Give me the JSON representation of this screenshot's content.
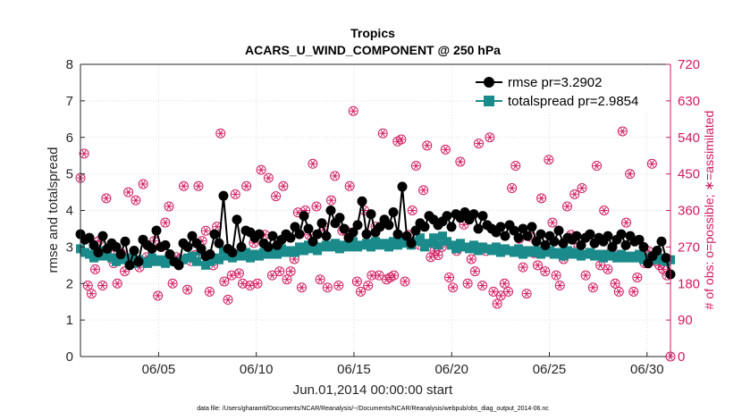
{
  "chart_data": {
    "type": "line",
    "title": "Tropics",
    "subtitle": "ACARS_U_WIND_COMPONENT @ 250 hPa",
    "xlabel": "Jun.01,2014 00:00:00 start",
    "ylabel": "rmse and totalspread",
    "ylabel_right": "# of obs: o=possible; ∗=assimilated",
    "footer": "data file: /Users/gharamti/Documents/NCAR/Reanalysis/~/Documents/NCAR/Reanalysis/webpub/obs_diag_output_2014-06.nc",
    "xlim": [
      1,
      31.2
    ],
    "ylim": [
      0,
      8
    ],
    "ylim_right": [
      0,
      720
    ],
    "x_ticks": [
      5,
      10,
      15,
      20,
      25,
      30
    ],
    "x_tick_labels": [
      "06/05",
      "06/10",
      "06/15",
      "06/20",
      "06/25",
      "06/30"
    ],
    "y_ticks": [
      0,
      1,
      2,
      3,
      4,
      5,
      6,
      7,
      8
    ],
    "y_tick_labels": [
      "0",
      "1",
      "2",
      "3",
      "4",
      "5",
      "6",
      "7",
      "8"
    ],
    "y_ticks_right": [
      0,
      90,
      180,
      270,
      360,
      450,
      540,
      630,
      720
    ],
    "y_tick_labels_right": [
      "0",
      "90",
      "180",
      "270",
      "360",
      "450",
      "540",
      "630",
      "720"
    ],
    "legend": [
      "rmse pr=3.2902",
      "totalspread pr=2.9854"
    ],
    "legend_position": "top-right",
    "colors": {
      "rmse": "#000000",
      "totalspread": "#1b8a8a",
      "obs": "#d1195f"
    },
    "series": [
      {
        "name": "rmse",
        "values": [
          3.35,
          3.2,
          3.25,
          3.05,
          2.85,
          3.3,
          2.95,
          3.1,
          3.0,
          2.8,
          3.15,
          2.5,
          2.9,
          2.6,
          3.2,
          3.05,
          2.95,
          3.45,
          3.0,
          3.05,
          2.8,
          2.6,
          2.5,
          3.1,
          3.0,
          3.3,
          3.1,
          2.95,
          2.75,
          2.8,
          3.35,
          3.1,
          4.4,
          2.95,
          2.85,
          3.75,
          3.0,
          3.45,
          3.4,
          3.25,
          3.35,
          3.1,
          3.0,
          3.3,
          3.05,
          3.2,
          3.35,
          3.25,
          3.55,
          3.35,
          3.85,
          3.5,
          3.15,
          3.35,
          3.65,
          3.3,
          4.0,
          3.65,
          3.8,
          3.5,
          3.25,
          3.4,
          3.6,
          4.25,
          3.35,
          3.9,
          3.4,
          3.55,
          3.75,
          3.6,
          3.95,
          3.35,
          4.65,
          3.3,
          3.1,
          3.45,
          3.65,
          3.55,
          3.85,
          3.75,
          3.6,
          3.7,
          3.85,
          3.55,
          3.9,
          3.8,
          3.95,
          3.75,
          3.9,
          3.5,
          3.85,
          3.6,
          3.5,
          3.4,
          3.55,
          3.3,
          3.6,
          3.45,
          3.25,
          3.5,
          3.3,
          3.55,
          3.15,
          3.35,
          3.05,
          3.3,
          3.15,
          3.45,
          3.1,
          3.25,
          3.2,
          3.3,
          3.05,
          3.25,
          3.35,
          3.1,
          3.25,
          3.15,
          3.3,
          3.0,
          3.2,
          3.35,
          3.05,
          3.3,
          3.15,
          3.2,
          3.0,
          2.55,
          2.75,
          2.9,
          3.15,
          2.7,
          2.25
        ]
      },
      {
        "name": "totalspread",
        "values": [
          2.95,
          2.85,
          2.8,
          2.7,
          2.9,
          2.75,
          2.85,
          2.7,
          2.6,
          2.75,
          2.65,
          2.7,
          2.55,
          2.65,
          2.6,
          2.55,
          2.7,
          2.6,
          2.65,
          2.55,
          2.7,
          2.6,
          2.55,
          2.65,
          2.7,
          2.75,
          2.6,
          2.9,
          2.5,
          2.6,
          2.7,
          2.65,
          2.9,
          2.75,
          2.7,
          2.8,
          2.75,
          2.85,
          2.7,
          2.8,
          2.75,
          2.85,
          2.8,
          2.9,
          2.8,
          2.95,
          2.85,
          2.9,
          2.85,
          3.0,
          2.9,
          3.05,
          2.95,
          2.9,
          3.0,
          3.05,
          3.0,
          3.1,
          2.95,
          3.05,
          3.0,
          3.15,
          3.0,
          3.05,
          3.1,
          3.0,
          3.15,
          3.05,
          3.1,
          3.0,
          3.15,
          3.05,
          3.2,
          3.1,
          3.05,
          3.15,
          3.25,
          3.0,
          3.1,
          3.25,
          3.05,
          3.3,
          3.15,
          3.05,
          2.95,
          3.1,
          3.0,
          2.95,
          3.05,
          2.9,
          3.0,
          2.95,
          2.9,
          3.0,
          2.85,
          2.95,
          2.9,
          2.85,
          2.95,
          2.8,
          2.9,
          2.85,
          2.9,
          2.8,
          2.85,
          2.9,
          2.8,
          2.85,
          2.75,
          2.9,
          2.8,
          2.85,
          2.75,
          2.8,
          2.85,
          2.75,
          2.8,
          2.7,
          2.8,
          2.75,
          2.7,
          2.8,
          2.7,
          2.75,
          2.7,
          2.8,
          2.65,
          2.7,
          2.75,
          2.65,
          2.7,
          2.6,
          2.65
        ]
      },
      {
        "name": "obs_possible",
        "values": [
          440,
          500,
          175,
          155,
          215,
          285,
          175,
          390,
          260,
          230,
          180,
          255,
          210,
          405,
          240,
          385,
          220,
          425,
          245,
          240,
          285,
          150,
          270,
          330,
          370,
          180,
          245,
          240,
          420,
          165,
          235,
          250,
          420,
          285,
          310,
          160,
          225,
          320,
          550,
          185,
          140,
          200,
          400,
          205,
          180,
          420,
          175,
          280,
          180,
          460,
          300,
          440,
          200,
          395,
          210,
          420,
          190,
          210,
          240,
          355,
          170,
          360,
          300,
          475,
          370,
          190,
          320,
          170,
          385,
          445,
          175,
          310,
          310,
          420,
          605,
          185,
          160,
          360,
          175,
          200,
          320,
          200,
          550,
          190,
          195,
          200,
          530,
          535,
          185,
          300,
          360,
          470,
          275,
          410,
          520,
          245,
          260,
          250,
          270,
          510,
          195,
          170,
          260,
          480,
          325,
          180,
          240,
          210,
          525,
          175,
          260,
          540,
          160,
          130,
          150,
          180,
          160,
          415,
          470,
          290,
          220,
          155,
          295,
          255,
          225,
          390,
          210,
          485,
          330,
          200,
          175,
          240,
          370,
          300,
          400,
          270,
          415,
          200,
          300,
          170,
          470,
          225,
          360,
          215,
          260,
          180,
          160,
          555,
          330,
          450,
          160,
          195,
          250,
          230,
          260,
          475,
          235,
          225,
          215,
          200,
          0
        ]
      }
    ]
  }
}
